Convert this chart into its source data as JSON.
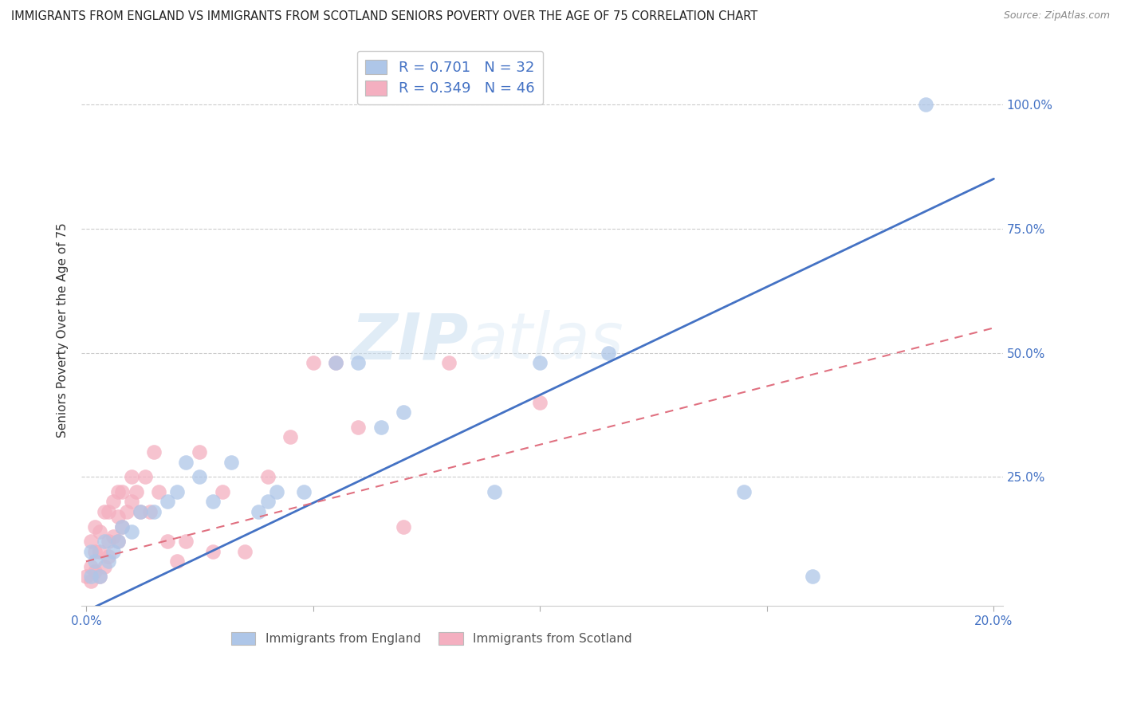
{
  "title": "IMMIGRANTS FROM ENGLAND VS IMMIGRANTS FROM SCOTLAND SENIORS POVERTY OVER THE AGE OF 75 CORRELATION CHART",
  "source": "Source: ZipAtlas.com",
  "ylabel": "Seniors Poverty Over the Age of 75",
  "england_R": 0.701,
  "england_N": 32,
  "scotland_R": 0.349,
  "scotland_N": 46,
  "england_color": "#aec6e8",
  "scotland_color": "#f4afc0",
  "england_line_color": "#4472c4",
  "scotland_line_color": "#e07080",
  "legend_text_color": "#4472c4",
  "watermark_zip": "ZIP",
  "watermark_atlas": "atlas",
  "xlim": [
    0.0,
    0.2
  ],
  "ylim": [
    0.0,
    1.1
  ],
  "x_ticks": [
    0.0,
    0.05,
    0.1,
    0.15,
    0.2
  ],
  "y_ticks": [
    0.25,
    0.5,
    0.75,
    1.0
  ],
  "england_x": [
    0.001,
    0.001,
    0.002,
    0.003,
    0.004,
    0.005,
    0.006,
    0.007,
    0.008,
    0.01,
    0.012,
    0.015,
    0.018,
    0.02,
    0.022,
    0.025,
    0.028,
    0.032,
    0.038,
    0.04,
    0.042,
    0.048,
    0.055,
    0.06,
    0.065,
    0.07,
    0.09,
    0.1,
    0.115,
    0.145,
    0.16,
    0.185
  ],
  "england_y": [
    0.05,
    0.1,
    0.08,
    0.05,
    0.12,
    0.08,
    0.1,
    0.12,
    0.15,
    0.14,
    0.18,
    0.18,
    0.2,
    0.22,
    0.28,
    0.25,
    0.2,
    0.28,
    0.18,
    0.2,
    0.22,
    0.22,
    0.48,
    0.48,
    0.35,
    0.38,
    0.22,
    0.48,
    0.5,
    0.22,
    0.05,
    1.0
  ],
  "scotland_x": [
    0.0,
    0.001,
    0.001,
    0.001,
    0.002,
    0.002,
    0.002,
    0.003,
    0.003,
    0.003,
    0.004,
    0.004,
    0.005,
    0.005,
    0.005,
    0.006,
    0.006,
    0.007,
    0.007,
    0.007,
    0.008,
    0.008,
    0.009,
    0.01,
    0.01,
    0.011,
    0.012,
    0.013,
    0.014,
    0.015,
    0.016,
    0.018,
    0.02,
    0.022,
    0.025,
    0.028,
    0.03,
    0.035,
    0.04,
    0.045,
    0.05,
    0.055,
    0.06,
    0.07,
    0.08,
    0.1
  ],
  "scotland_y": [
    0.05,
    0.04,
    0.07,
    0.12,
    0.06,
    0.1,
    0.15,
    0.05,
    0.1,
    0.14,
    0.07,
    0.18,
    0.09,
    0.12,
    0.18,
    0.13,
    0.2,
    0.12,
    0.17,
    0.22,
    0.15,
    0.22,
    0.18,
    0.2,
    0.25,
    0.22,
    0.18,
    0.25,
    0.18,
    0.3,
    0.22,
    0.12,
    0.08,
    0.12,
    0.3,
    0.1,
    0.22,
    0.1,
    0.25,
    0.33,
    0.48,
    0.48,
    0.35,
    0.15,
    0.48,
    0.4
  ],
  "eng_line_x0": 0.0,
  "eng_line_y0": -0.02,
  "eng_line_x1": 0.2,
  "eng_line_y1": 0.85,
  "sco_line_x0": 0.0,
  "sco_line_y0": 0.08,
  "sco_line_x1": 0.2,
  "sco_line_y1": 0.55
}
